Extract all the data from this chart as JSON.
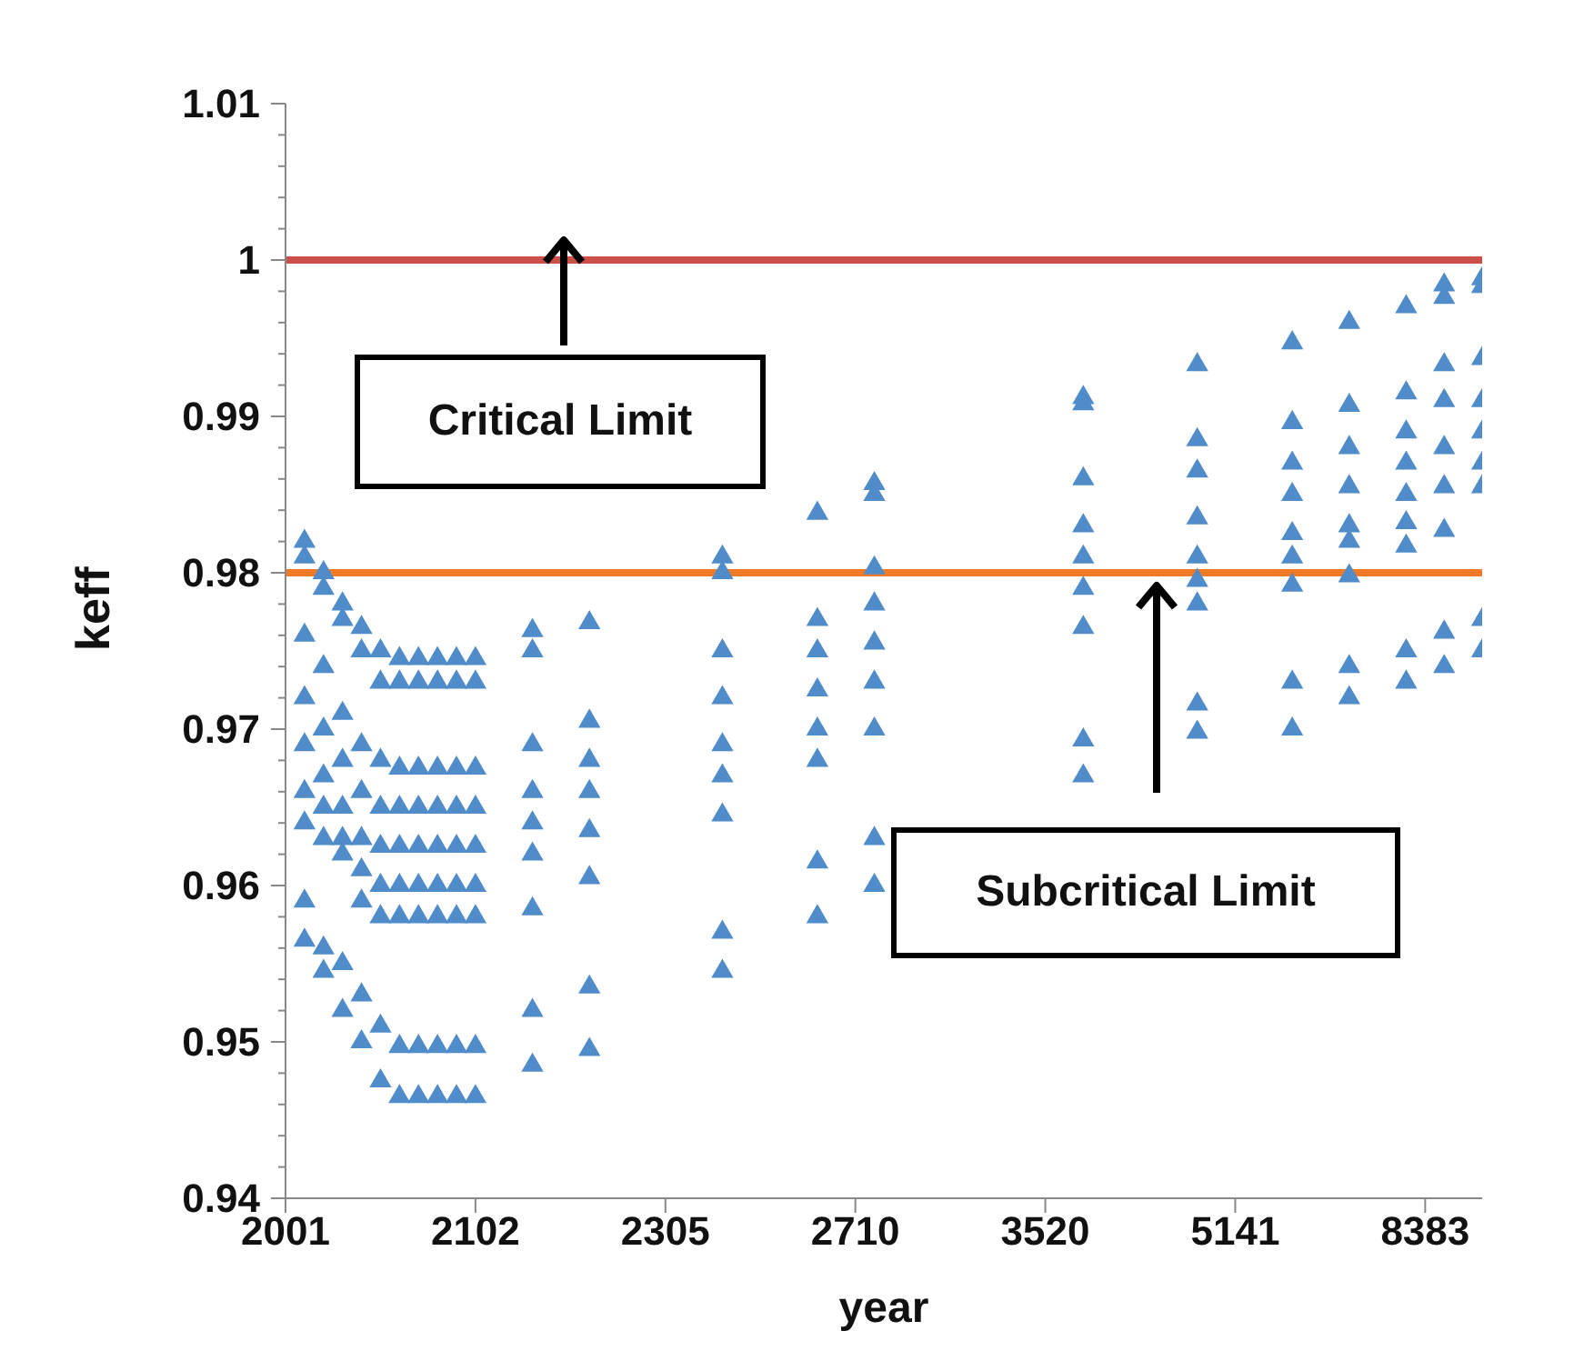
{
  "chart_data": {
    "type": "scatter",
    "xlabel": "year",
    "ylabel": "keff",
    "categories": [
      "2001",
      null,
      null,
      null,
      null,
      null,
      null,
      null,
      null,
      null,
      "2102",
      null,
      null,
      null,
      null,
      null,
      null,
      null,
      null,
      null,
      "2305",
      null,
      null,
      null,
      null,
      null,
      null,
      null,
      null,
      null,
      "2710",
      null,
      null,
      null,
      null,
      null,
      null,
      null,
      null,
      null,
      "3520",
      null,
      null,
      null,
      null,
      null,
      null,
      null,
      null,
      null,
      "5141",
      null,
      null,
      null,
      null,
      null,
      null,
      null,
      null,
      null,
      "8383",
      null,
      null,
      null
    ],
    "ylim": [
      0.94,
      1.01
    ],
    "yticks": [
      0.94,
      {
        "value": 0.942,
        "label": null
      },
      {
        "value": 0.944,
        "label": null
      },
      {
        "value": 0.946,
        "label": null
      },
      {
        "value": 0.948,
        "label": null
      },
      0.95,
      {
        "value": 0.952,
        "label": null
      },
      {
        "value": 0.954,
        "label": null
      },
      {
        "value": 0.956,
        "label": null
      },
      {
        "value": 0.958,
        "label": null
      },
      0.96,
      {
        "value": 0.962,
        "label": null
      },
      {
        "value": 0.964,
        "label": null
      },
      {
        "value": 0.966,
        "label": null
      },
      {
        "value": 0.968,
        "label": null
      },
      0.97,
      {
        "value": 0.972,
        "label": null
      },
      {
        "value": 0.974,
        "label": null
      },
      {
        "value": 0.976,
        "label": null
      },
      {
        "value": 0.978,
        "label": null
      },
      0.98,
      {
        "value": 0.982,
        "label": null
      },
      {
        "value": 0.984,
        "label": null
      },
      {
        "value": 0.986,
        "label": null
      },
      {
        "value": 0.988,
        "label": null
      },
      0.99,
      {
        "value": 0.992,
        "label": null
      },
      {
        "value": 0.994,
        "label": null
      },
      {
        "value": 0.996,
        "label": null
      },
      {
        "value": 0.998,
        "label": null
      },
      1,
      {
        "value": 1.002,
        "label": null
      },
      {
        "value": 1.004,
        "label": null
      },
      {
        "value": 1.006,
        "label": null
      },
      {
        "value": 1.008,
        "label": null
      },
      1.01
    ],
    "marker": "triangle",
    "series": [
      {
        "color": "#4f8cc9",
        "values": [
          null,
          0.982,
          0.98,
          0.978,
          0.9765,
          0.975,
          0.9745,
          0.9745,
          0.9745,
          0.9745,
          0.9745,
          null,
          null,
          0.9763,
          null,
          null,
          0.9768,
          null,
          null,
          null,
          null,
          null,
          null,
          0.981,
          null,
          null,
          null,
          null,
          0.9838,
          null,
          null,
          0.9857,
          null,
          null,
          null,
          null,
          null,
          null,
          null,
          null,
          null,
          null,
          0.9912,
          null,
          null,
          null,
          null,
          null,
          0.9933,
          null,
          null,
          null,
          null,
          0.9947,
          null,
          null,
          0.996,
          null,
          null,
          0.997,
          null,
          0.9984,
          null,
          0.9988
        ]
      },
      {
        "color": "#4f8cc9",
        "values": [
          null,
          0.981,
          0.979,
          0.977,
          0.975,
          0.973,
          0.973,
          0.973,
          0.973,
          0.973,
          0.973,
          null,
          null,
          0.975,
          null,
          null,
          0.9705,
          null,
          null,
          null,
          null,
          null,
          null,
          0.98,
          null,
          null,
          null,
          null,
          0.977,
          null,
          null,
          0.985,
          null,
          null,
          null,
          null,
          null,
          null,
          null,
          null,
          null,
          null,
          0.9908,
          null,
          null,
          null,
          null,
          null,
          0.9885,
          null,
          null,
          null,
          null,
          0.9896,
          null,
          null,
          0.9907,
          null,
          null,
          0.9915,
          null,
          0.9976,
          null,
          0.9983
        ]
      },
      {
        "color": "#4f8cc9",
        "values": [
          null,
          0.976,
          0.974,
          0.971,
          0.969,
          0.968,
          0.9675,
          0.9675,
          0.9675,
          0.9675,
          0.9675,
          null,
          null,
          0.969,
          null,
          null,
          0.968,
          null,
          null,
          null,
          null,
          null,
          null,
          0.975,
          null,
          null,
          null,
          null,
          0.975,
          null,
          null,
          0.9803,
          null,
          null,
          null,
          null,
          null,
          null,
          null,
          null,
          null,
          null,
          0.986,
          null,
          null,
          null,
          null,
          null,
          0.9865,
          null,
          null,
          null,
          null,
          0.987,
          null,
          null,
          0.988,
          null,
          null,
          0.989,
          null,
          0.9933,
          null,
          0.9937
        ]
      },
      {
        "color": "#4f8cc9",
        "values": [
          null,
          0.972,
          0.97,
          0.968,
          0.966,
          0.965,
          0.965,
          0.965,
          0.965,
          0.965,
          0.965,
          null,
          null,
          0.966,
          null,
          null,
          0.966,
          null,
          null,
          null,
          null,
          null,
          null,
          0.972,
          null,
          null,
          null,
          null,
          0.9725,
          null,
          null,
          0.978,
          null,
          null,
          null,
          null,
          null,
          null,
          null,
          null,
          null,
          null,
          0.983,
          null,
          null,
          null,
          null,
          null,
          0.9835,
          null,
          null,
          null,
          null,
          0.985,
          null,
          null,
          0.9855,
          null,
          null,
          0.987,
          null,
          0.991,
          null,
          0.991
        ]
      },
      {
        "color": "#4f8cc9",
        "values": [
          null,
          0.969,
          0.967,
          0.965,
          0.963,
          0.9625,
          0.9625,
          0.9625,
          0.9625,
          0.9625,
          0.9625,
          null,
          null,
          0.964,
          null,
          null,
          0.9635,
          null,
          null,
          null,
          null,
          null,
          null,
          0.969,
          null,
          null,
          null,
          null,
          0.97,
          null,
          null,
          0.9755,
          null,
          null,
          null,
          null,
          null,
          null,
          null,
          null,
          null,
          null,
          0.981,
          null,
          null,
          null,
          null,
          null,
          0.981,
          null,
          null,
          null,
          null,
          0.9825,
          null,
          null,
          0.983,
          null,
          null,
          0.985,
          null,
          0.988,
          null,
          0.989
        ]
      },
      {
        "color": "#4f8cc9",
        "values": [
          null,
          0.966,
          0.965,
          0.963,
          0.961,
          0.96,
          0.96,
          0.96,
          0.96,
          0.96,
          0.96,
          null,
          null,
          0.962,
          null,
          null,
          0.9605,
          null,
          null,
          null,
          null,
          null,
          null,
          0.967,
          null,
          null,
          null,
          null,
          0.968,
          null,
          null,
          0.973,
          null,
          null,
          null,
          null,
          null,
          null,
          null,
          null,
          null,
          null,
          0.979,
          null,
          null,
          null,
          null,
          null,
          0.9795,
          null,
          null,
          null,
          null,
          0.981,
          null,
          null,
          0.982,
          null,
          null,
          0.9832,
          null,
          0.9855,
          null,
          0.987
        ]
      },
      {
        "color": "#4f8cc9",
        "values": [
          null,
          0.964,
          0.963,
          0.962,
          0.959,
          0.958,
          0.958,
          0.958,
          0.958,
          0.958,
          0.958,
          null,
          null,
          0.9585,
          null,
          null,
          0.9535,
          null,
          null,
          null,
          null,
          null,
          null,
          0.9645,
          null,
          null,
          null,
          null,
          0.9615,
          null,
          null,
          0.97,
          null,
          null,
          null,
          null,
          null,
          null,
          null,
          null,
          null,
          null,
          0.9765,
          null,
          null,
          null,
          null,
          null,
          0.978,
          null,
          null,
          null,
          null,
          0.9792,
          null,
          null,
          0.9798,
          null,
          null,
          0.9817,
          null,
          0.9827,
          null,
          0.9855
        ]
      },
      {
        "color": "#4f8cc9",
        "values": [
          null,
          0.959,
          0.956,
          0.955,
          0.953,
          0.951,
          0.9497,
          0.9497,
          0.9497,
          0.9497,
          0.9497,
          null,
          null,
          0.952,
          null,
          null,
          0.9495,
          null,
          null,
          null,
          null,
          null,
          null,
          0.957,
          null,
          null,
          null,
          null,
          0.958,
          null,
          null,
          0.963,
          null,
          null,
          null,
          null,
          null,
          null,
          null,
          null,
          null,
          null,
          0.9693,
          null,
          null,
          null,
          null,
          null,
          0.9716,
          null,
          null,
          null,
          null,
          0.973,
          null,
          null,
          0.974,
          null,
          null,
          0.975,
          null,
          0.9762,
          null,
          0.977
        ]
      },
      {
        "color": "#4f8cc9",
        "values": [
          null,
          0.9565,
          0.9545,
          0.952,
          0.95,
          0.9475,
          0.9465,
          0.9465,
          0.9465,
          0.9465,
          0.9465,
          null,
          null,
          0.9485,
          null,
          null,
          null,
          null,
          null,
          null,
          null,
          null,
          null,
          0.9545,
          null,
          null,
          null,
          null,
          null,
          null,
          null,
          0.96,
          null,
          null,
          null,
          null,
          null,
          null,
          null,
          null,
          null,
          null,
          0.967,
          null,
          null,
          null,
          null,
          null,
          0.9698,
          null,
          null,
          null,
          null,
          0.97,
          null,
          null,
          0.972,
          null,
          null,
          0.973,
          null,
          0.974,
          null,
          0.975
        ]
      }
    ],
    "ref_lines": [
      {
        "axis": "y",
        "value": 1,
        "color": "#cd4f4a"
      },
      {
        "axis": "y",
        "value": 0.98,
        "color": "#f07a25"
      }
    ],
    "annotations": [
      "Critical Limit",
      "Subcritical Limit"
    ]
  }
}
